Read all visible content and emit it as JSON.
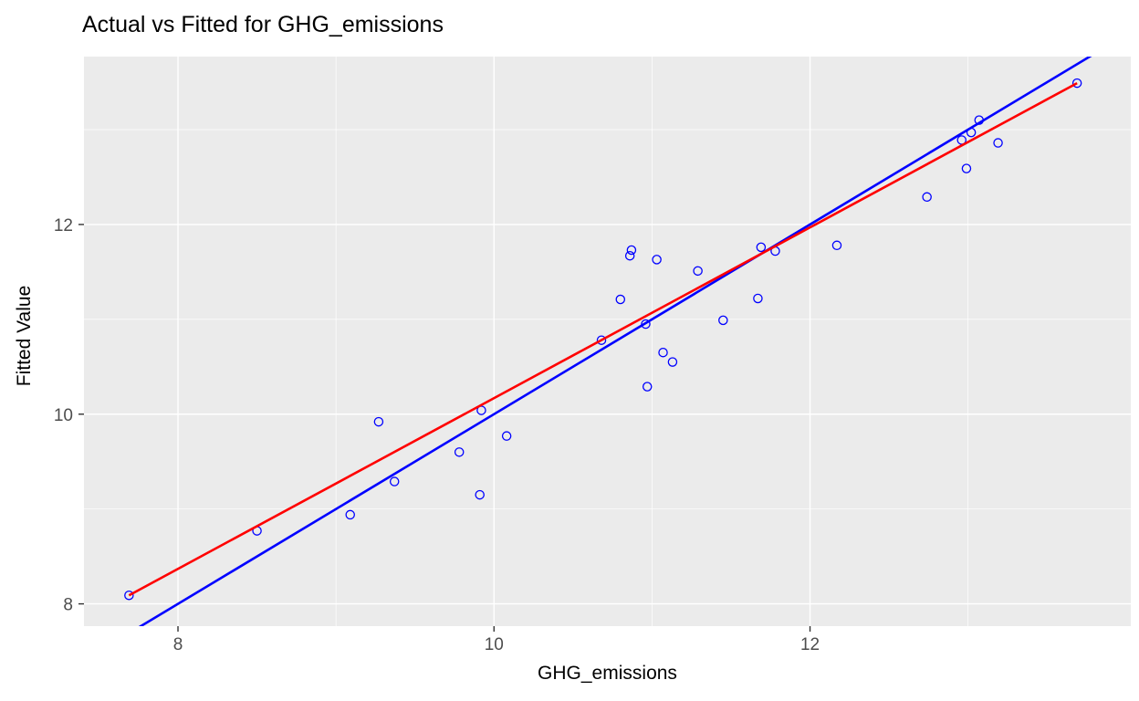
{
  "chart_data": {
    "type": "scatter",
    "title": "Actual vs Fitted for GHG_emissions",
    "xlabel": "GHG_emissions",
    "ylabel": "Fitted Value",
    "xlim": [
      7.405,
      14.03
    ],
    "ylim": [
      7.765,
      13.77
    ],
    "x_ticks": [
      8,
      10,
      12
    ],
    "y_ticks": [
      8,
      10,
      12
    ],
    "x_minor_gridlines": [
      9,
      11,
      13
    ],
    "y_minor_gridlines": [
      9,
      11,
      13
    ],
    "grid": true,
    "legend": "none",
    "panel_bg": "#EBEBEB",
    "grid_color": "#FFFFFF",
    "tick_mark_color": "#333333",
    "tick_label_color": "#4D4D4D",
    "point_color": "#0000FF",
    "points": [
      [
        7.69,
        8.09
      ],
      [
        8.5,
        8.77
      ],
      [
        9.09,
        8.94
      ],
      [
        9.27,
        9.92
      ],
      [
        9.37,
        9.29
      ],
      [
        9.78,
        9.6
      ],
      [
        9.91,
        9.15
      ],
      [
        9.92,
        10.04
      ],
      [
        10.08,
        9.77
      ],
      [
        10.68,
        10.78
      ],
      [
        10.8,
        11.21
      ],
      [
        10.86,
        11.67
      ],
      [
        10.87,
        11.73
      ],
      [
        10.96,
        10.95
      ],
      [
        10.97,
        10.29
      ],
      [
        11.03,
        11.63
      ],
      [
        11.07,
        10.65
      ],
      [
        11.13,
        10.55
      ],
      [
        11.29,
        11.51
      ],
      [
        11.45,
        10.99
      ],
      [
        11.67,
        11.22
      ],
      [
        11.69,
        11.76
      ],
      [
        11.78,
        11.72
      ],
      [
        12.17,
        11.78
      ],
      [
        12.74,
        12.29
      ],
      [
        12.96,
        12.89
      ],
      [
        12.99,
        12.59
      ],
      [
        13.02,
        12.97
      ],
      [
        13.07,
        13.1
      ],
      [
        13.19,
        12.86
      ],
      [
        13.69,
        13.49
      ]
    ],
    "lines": [
      {
        "name": "identity-line",
        "color": "#0000FF",
        "slope": 1,
        "intercept": 0
      },
      {
        "name": "regression-line",
        "color": "#FF0000",
        "x1": 7.69,
        "y1": 8.09,
        "x2": 13.69,
        "y2": 13.49
      }
    ]
  }
}
